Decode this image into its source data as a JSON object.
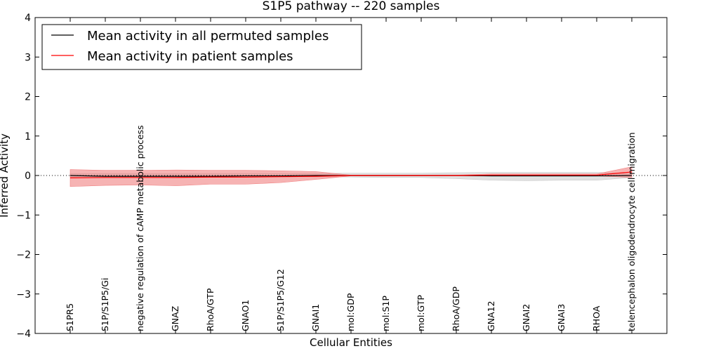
{
  "chart_data": {
    "type": "line",
    "title": "S1P5 pathway -- 220 samples",
    "xlabel": "Cellular Entities",
    "ylabel": "Inferred Activity",
    "ylim": [
      -4,
      4
    ],
    "yticks": [
      4,
      3,
      2,
      1,
      0,
      -1,
      -2,
      -3,
      -4
    ],
    "ytick_labels": [
      "4",
      "3",
      "2",
      "1",
      "0",
      "−1",
      "−2",
      "−3",
      "−4"
    ],
    "categories": [
      "S1PR5",
      "S1P/S1P5/Gi",
      "negative regulation of cAMP metabolic process",
      "GNAZ",
      "RhoA/GTP",
      "GNAO1",
      "S1P/S1P5/G12",
      "GNAI1",
      "mol:GDP",
      "mol:S1P",
      "mol:GTP",
      "RhoA/GDP",
      "GNA12",
      "GNAI2",
      "GNAI3",
      "RHOA",
      "telencephalon oligodendrocyte cell migration"
    ],
    "legend_position": "top-left",
    "zero_line": "dotted",
    "series": [
      {
        "name": "Mean activity in all permuted samples",
        "color": "#000000",
        "band_color": "#c8c8c8",
        "values": [
          0.0,
          -0.02,
          -0.02,
          -0.02,
          -0.02,
          -0.01,
          -0.01,
          0.0,
          0.0,
          0.0,
          0.0,
          0.0,
          -0.01,
          -0.01,
          -0.01,
          -0.01,
          0.0
        ],
        "band_low": [
          -0.05,
          -0.05,
          -0.05,
          -0.05,
          -0.05,
          -0.04,
          -0.04,
          -0.03,
          -0.04,
          -0.05,
          -0.05,
          -0.08,
          -0.12,
          -0.13,
          -0.12,
          -0.12,
          -0.05
        ],
        "band_high": [
          0.05,
          0.05,
          0.05,
          0.05,
          0.05,
          0.05,
          0.05,
          0.05,
          0.06,
          0.06,
          0.06,
          0.07,
          0.08,
          0.08,
          0.08,
          0.08,
          0.05
        ]
      },
      {
        "name": "Mean activity in patient samples",
        "color": "#ff0000",
        "band_color": "#f08080",
        "values": [
          -0.06,
          -0.05,
          -0.05,
          -0.05,
          -0.04,
          -0.04,
          -0.03,
          -0.02,
          0.0,
          0.0,
          0.0,
          0.0,
          0.01,
          0.01,
          0.01,
          0.01,
          0.09
        ],
        "band_low": [
          -0.28,
          -0.25,
          -0.24,
          -0.26,
          -0.22,
          -0.22,
          -0.18,
          -0.1,
          -0.01,
          -0.01,
          -0.01,
          -0.01,
          -0.01,
          -0.01,
          -0.01,
          -0.01,
          -0.05
        ],
        "band_high": [
          0.15,
          0.13,
          0.13,
          0.14,
          0.13,
          0.13,
          0.12,
          0.1,
          0.01,
          0.01,
          0.01,
          0.01,
          0.04,
          0.04,
          0.04,
          0.04,
          0.22
        ]
      }
    ]
  }
}
